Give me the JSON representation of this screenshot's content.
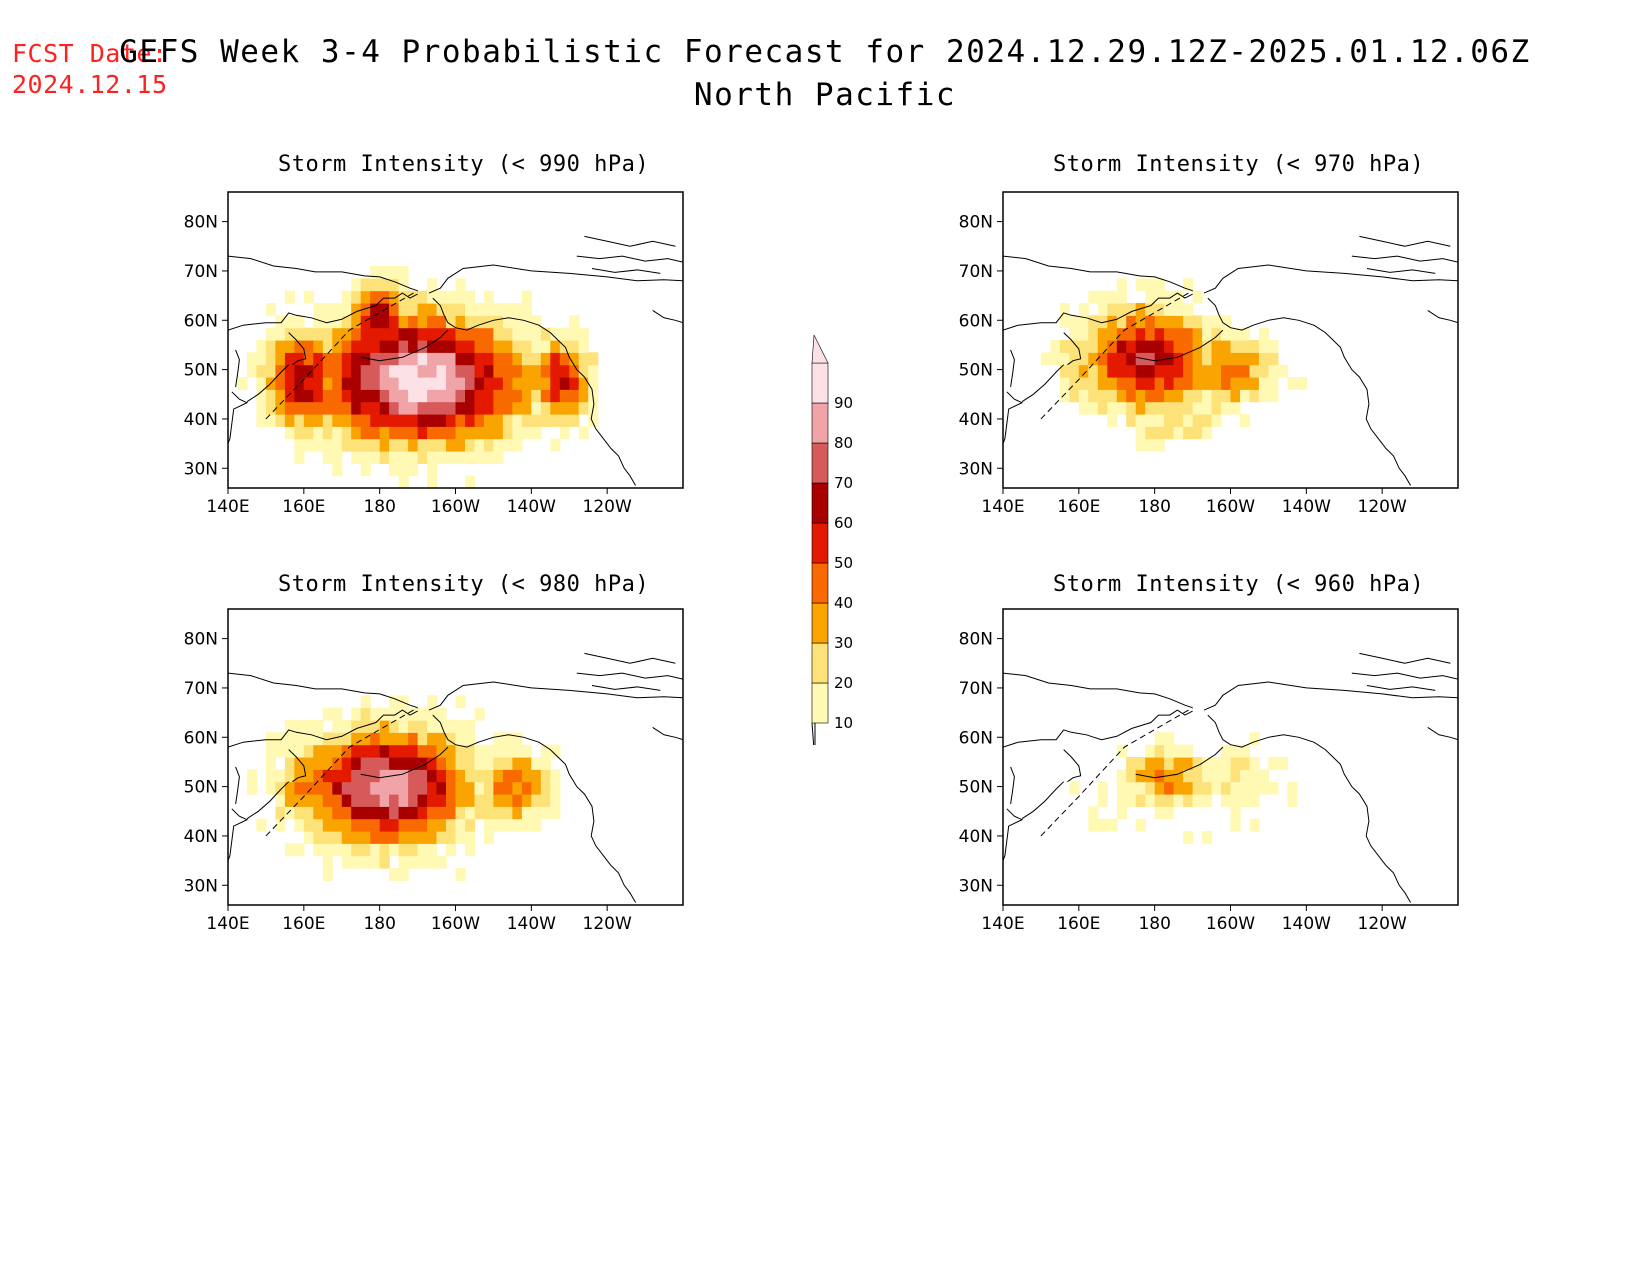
{
  "header": {
    "fcst_label": "FCST Date:",
    "fcst_date": "2024.12.15",
    "title": "GEFS Week 3-4 Probabilistic Forecast for 2024.12.29.12Z-2025.01.12.06Z",
    "subtitle": "North Pacific"
  },
  "axes": {
    "lon_labels": [
      "140E",
      "160E",
      "180",
      "160W",
      "140W",
      "120W"
    ],
    "lat_labels": [
      "80N",
      "70N",
      "60N",
      "50N",
      "40N",
      "30N"
    ]
  },
  "colorbar": {
    "levels": [
      "10",
      "20",
      "30",
      "40",
      "50",
      "60",
      "70",
      "80",
      "90"
    ],
    "colors": [
      "#fff9b3",
      "#fde27a",
      "#f9a400",
      "#f86a00",
      "#e31a00",
      "#a80000",
      "#d65a5a",
      "#f0a4a8",
      "#fce2e6"
    ]
  },
  "panels": [
    {
      "id": "p990",
      "title": "Storm Intensity (< 990 hPa)",
      "threshold_hpa": 990
    },
    {
      "id": "p970",
      "title": "Storm Intensity (< 970 hPa)",
      "threshold_hpa": 970
    },
    {
      "id": "p980",
      "title": "Storm Intensity (< 980 hPa)",
      "threshold_hpa": 980
    },
    {
      "id": "p960",
      "title": "Storm Intensity (< 960 hPa)",
      "threshold_hpa": 960
    }
  ]
}
